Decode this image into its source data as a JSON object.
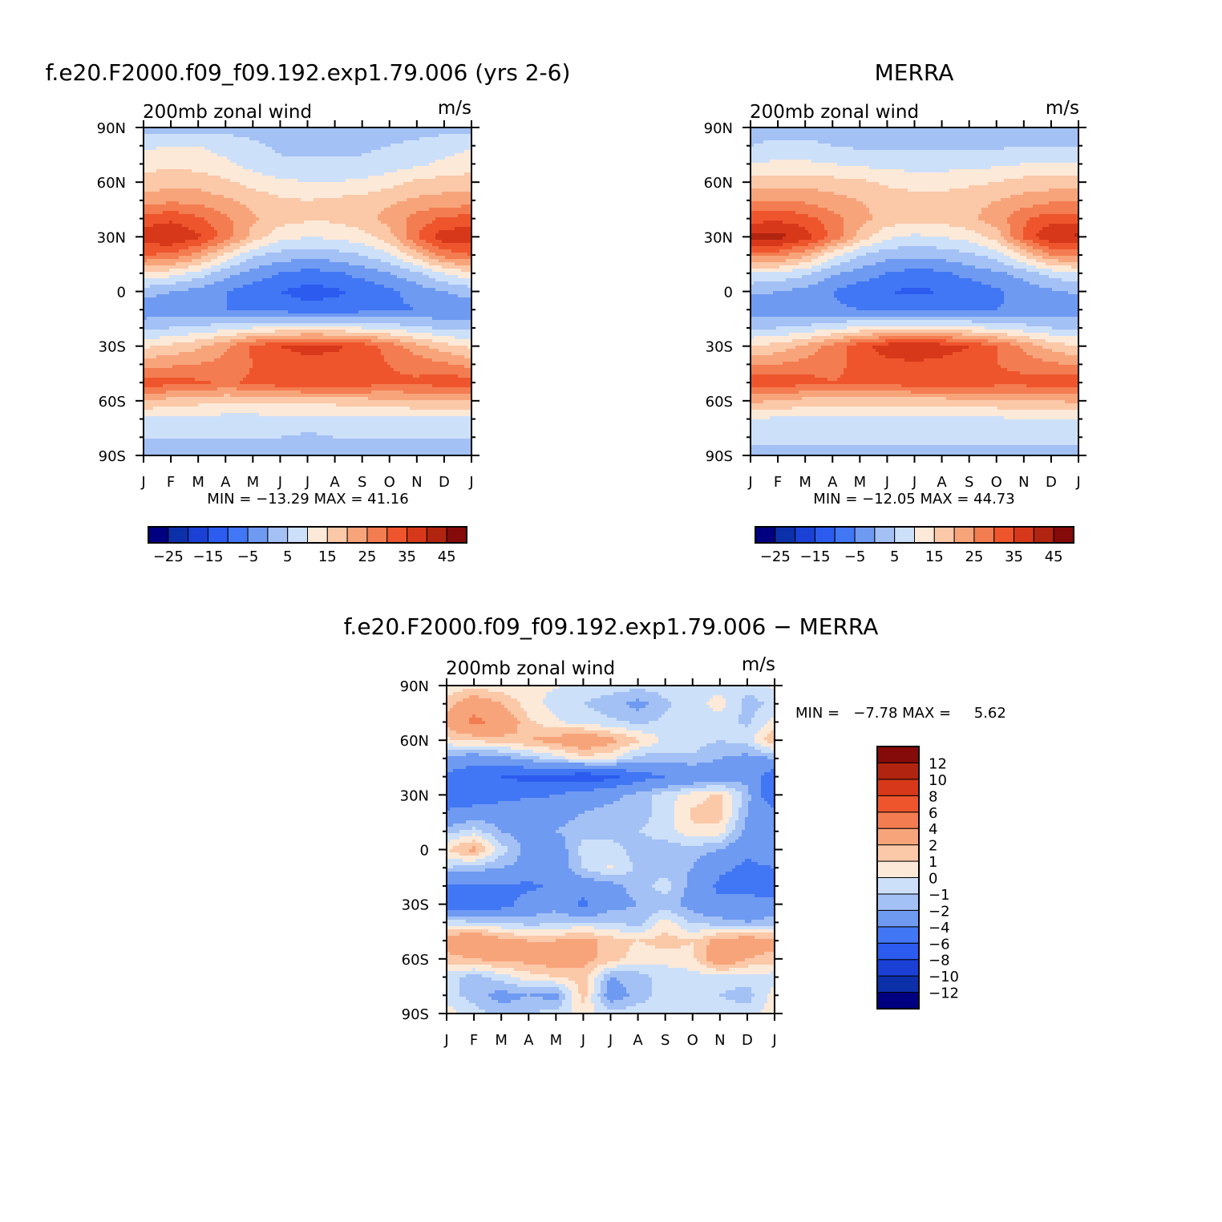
{
  "chart_data": [
    {
      "type": "heatmap",
      "title": "f.e20.F2000.f09_f09.192.exp1.79.006 (yrs 2-6)",
      "left_label": "200mb zonal wind",
      "right_label": "m/s",
      "x_ticks": [
        "J",
        "F",
        "M",
        "A",
        "M",
        "J",
        "J",
        "A",
        "S",
        "O",
        "N",
        "D",
        "J"
      ],
      "y_ticks": [
        "90N",
        "60N",
        "30N",
        "0",
        "30S",
        "60S",
        "90S"
      ],
      "ylim": [
        -90,
        90
      ],
      "min_max_text": "MIN = −13.29 MAX =   41.16",
      "min": -13.29,
      "max": 41.16,
      "colorbar": {
        "orientation": "horizontal",
        "levels": [
          -30,
          -25,
          -20,
          -15,
          -10,
          -5,
          0,
          5,
          10,
          15,
          20,
          25,
          30,
          35,
          40,
          45,
          50
        ],
        "labels": [
          "−25",
          "−15",
          "−5",
          "5",
          "15",
          "25",
          "35",
          "45"
        ]
      },
      "field": {
        "months": [
          1,
          2,
          3,
          4,
          5,
          6,
          7,
          8,
          9,
          10,
          11,
          12,
          13
        ],
        "latitudes": [
          90,
          80,
          70,
          60,
          50,
          40,
          30,
          20,
          10,
          0,
          -10,
          -20,
          -30,
          -40,
          -50,
          -60,
          -70,
          -80,
          -90
        ],
        "values": [
          [
            3,
            3,
            3,
            3,
            3,
            3,
            3,
            3,
            3,
            3,
            3,
            3,
            3
          ],
          [
            9,
            10,
            10,
            8,
            6,
            4,
            4,
            4,
            4,
            5,
            6,
            8,
            9
          ],
          [
            13,
            14,
            13,
            11,
            8,
            6,
            6,
            6,
            6,
            7,
            9,
            11,
            13
          ],
          [
            17,
            18,
            18,
            16,
            13,
            11,
            10,
            10,
            11,
            13,
            16,
            17,
            17
          ],
          [
            22,
            24,
            23,
            21,
            18,
            16,
            15,
            16,
            17,
            19,
            21,
            22,
            22
          ],
          [
            32,
            34,
            31,
            26,
            21,
            17,
            16,
            16,
            18,
            22,
            27,
            31,
            32
          ],
          [
            38,
            40,
            36,
            28,
            18,
            12,
            10,
            11,
            13,
            18,
            30,
            38,
            38
          ],
          [
            30,
            29,
            23,
            14,
            6,
            3,
            2,
            3,
            5,
            9,
            18,
            27,
            30
          ],
          [
            14,
            12,
            8,
            2,
            -2,
            -5,
            -7,
            -6,
            -3,
            0,
            4,
            10,
            14
          ],
          [
            2,
            0,
            -2,
            -5,
            -8,
            -10,
            -12,
            -11,
            -9,
            -6,
            -3,
            0,
            2
          ],
          [
            -3,
            -3,
            -4,
            -5,
            -6,
            -7,
            -8,
            -8,
            -7,
            -6,
            -5,
            -4,
            -3
          ],
          [
            3,
            5,
            6,
            8,
            10,
            11,
            11,
            11,
            10,
            8,
            6,
            4,
            3
          ],
          [
            14,
            16,
            19,
            24,
            31,
            35,
            37,
            36,
            33,
            28,
            22,
            17,
            14
          ],
          [
            23,
            24,
            25,
            27,
            30,
            32,
            33,
            33,
            32,
            30,
            28,
            26,
            23
          ],
          [
            33,
            32,
            31,
            29,
            31,
            33,
            34,
            35,
            33,
            31,
            31,
            33,
            33
          ],
          [
            20,
            18,
            17,
            16,
            16,
            17,
            17,
            17,
            18,
            19,
            20,
            20,
            20
          ],
          [
            9,
            8,
            8,
            8,
            8,
            8,
            8,
            8,
            8,
            8,
            8,
            9,
            9
          ],
          [
            5,
            5,
            5,
            5,
            5,
            5,
            4,
            5,
            5,
            5,
            5,
            5,
            5
          ],
          [
            4,
            4,
            4,
            4,
            4,
            4,
            4,
            4,
            4,
            4,
            4,
            4,
            4
          ]
        ]
      }
    },
    {
      "type": "heatmap",
      "title": "MERRA",
      "left_label": "200mb zonal wind",
      "right_label": "m/s",
      "x_ticks": [
        "J",
        "F",
        "M",
        "A",
        "M",
        "J",
        "J",
        "A",
        "S",
        "O",
        "N",
        "D",
        "J"
      ],
      "y_ticks": [
        "90N",
        "60N",
        "30N",
        "0",
        "30S",
        "60S",
        "90S"
      ],
      "ylim": [
        -90,
        90
      ],
      "min_max_text": "MIN = −12.05 MAX =   44.73",
      "min": -12.05,
      "max": 44.73,
      "colorbar": {
        "orientation": "horizontal",
        "levels": [
          -30,
          -25,
          -20,
          -15,
          -10,
          -5,
          0,
          5,
          10,
          15,
          20,
          25,
          30,
          35,
          40,
          45,
          50
        ],
        "labels": [
          "−25",
          "−15",
          "−5",
          "5",
          "15",
          "25",
          "35",
          "45"
        ]
      },
      "field": {
        "months": [
          1,
          2,
          3,
          4,
          5,
          6,
          7,
          8,
          9,
          10,
          11,
          12,
          13
        ],
        "latitudes": [
          90,
          80,
          70,
          60,
          50,
          40,
          30,
          20,
          10,
          0,
          -10,
          -20,
          -30,
          -40,
          -50,
          -60,
          -70,
          -80,
          -90
        ],
        "values": [
          [
            3,
            3,
            3,
            3,
            3,
            3,
            3,
            3,
            3,
            3,
            3,
            3,
            3
          ],
          [
            5,
            6,
            6,
            5,
            4,
            4,
            4,
            4,
            4,
            4,
            5,
            5,
            5
          ],
          [
            10,
            11,
            11,
            10,
            9,
            8,
            8,
            8,
            8,
            9,
            10,
            10,
            10
          ],
          [
            17,
            18,
            18,
            17,
            16,
            14,
            13,
            13,
            14,
            15,
            17,
            17,
            17
          ],
          [
            24,
            25,
            24,
            22,
            20,
            18,
            17,
            17,
            18,
            20,
            22,
            24,
            24
          ],
          [
            33,
            34,
            32,
            27,
            22,
            18,
            17,
            17,
            19,
            23,
            29,
            33,
            33
          ],
          [
            41,
            42,
            38,
            29,
            18,
            11,
            9,
            10,
            12,
            17,
            31,
            40,
            41
          ],
          [
            27,
            27,
            21,
            12,
            5,
            2,
            1,
            2,
            4,
            7,
            16,
            25,
            27
          ],
          [
            10,
            9,
            6,
            1,
            -2,
            -5,
            -7,
            -6,
            -3,
            -1,
            2,
            7,
            10
          ],
          [
            1,
            0,
            -2,
            -5,
            -8,
            -10,
            -11,
            -10,
            -9,
            -6,
            -3,
            -1,
            1
          ],
          [
            -3,
            -3,
            -3,
            -4,
            -5,
            -6,
            -6,
            -6,
            -6,
            -5,
            -4,
            -3,
            -3
          ],
          [
            4,
            5,
            6,
            9,
            11,
            12,
            12,
            12,
            11,
            9,
            7,
            5,
            4
          ],
          [
            15,
            17,
            21,
            27,
            33,
            38,
            40,
            38,
            35,
            30,
            24,
            18,
            15
          ],
          [
            24,
            25,
            27,
            29,
            31,
            33,
            34,
            33,
            32,
            30,
            28,
            26,
            24
          ],
          [
            34,
            33,
            32,
            30,
            31,
            32,
            33,
            33,
            34,
            32,
            32,
            33,
            34
          ],
          [
            21,
            20,
            18,
            17,
            17,
            17,
            18,
            18,
            19,
            19,
            20,
            20,
            21
          ],
          [
            10,
            9,
            9,
            9,
            9,
            9,
            9,
            9,
            9,
            9,
            10,
            10,
            10
          ],
          [
            6,
            6,
            6,
            6,
            6,
            6,
            6,
            6,
            6,
            6,
            6,
            6,
            6
          ],
          [
            4,
            4,
            4,
            4,
            4,
            4,
            4,
            4,
            4,
            4,
            4,
            4,
            4
          ]
        ]
      }
    },
    {
      "type": "heatmap",
      "title": "f.e20.F2000.f09_f09.192.exp1.79.006 − MERRA",
      "left_label": "200mb zonal wind",
      "right_label": "m/s",
      "x_ticks": [
        "J",
        "F",
        "M",
        "A",
        "M",
        "J",
        "J",
        "A",
        "S",
        "O",
        "N",
        "D",
        "J"
      ],
      "y_ticks": [
        "90N",
        "60N",
        "30N",
        "0",
        "30S",
        "60S",
        "90S"
      ],
      "ylim": [
        -90,
        90
      ],
      "min_max_text": "MIN =   −7.78 MAX =     5.62",
      "min": -7.78,
      "max": 5.62,
      "colorbar": {
        "orientation": "vertical",
        "levels": [
          -14,
          -12,
          -10,
          -8,
          -6,
          -4,
          -2,
          -1,
          0,
          1,
          2,
          4,
          6,
          8,
          10,
          12,
          14
        ],
        "labels": [
          "−12",
          "−10",
          "−8",
          "−6",
          "−4",
          "−2",
          "−1",
          "0",
          "1",
          "2",
          "4",
          "6",
          "8",
          "10",
          "12"
        ]
      },
      "field": {
        "months": [
          1,
          2,
          3,
          4,
          5,
          6,
          7,
          8,
          9,
          10,
          11,
          12,
          13
        ],
        "latitudes": [
          90,
          80,
          70,
          60,
          50,
          40,
          30,
          20,
          10,
          0,
          -10,
          -20,
          -30,
          -40,
          -50,
          -60,
          -70,
          -80,
          -90
        ],
        "values": [
          [
            0.3,
            0.5,
            0.4,
            0.2,
            0.1,
            -0.4,
            -0.5,
            -0.6,
            -0.5,
            -0.4,
            -0.5,
            -0.6,
            0.2
          ],
          [
            1.5,
            3.2,
            2.0,
            0.5,
            -0.5,
            -1.0,
            -1.5,
            -2.5,
            -1.2,
            -0.5,
            0.5,
            -1.5,
            -0.8
          ],
          [
            2.5,
            4.5,
            3.5,
            1.2,
            0.2,
            -0.5,
            -0.8,
            -1.2,
            -0.8,
            -0.8,
            -0.5,
            -1.2,
            0.5
          ],
          [
            0.8,
            1.2,
            1.5,
            2.0,
            2.5,
            3.5,
            2.5,
            1.2,
            -0.2,
            -0.5,
            -1.0,
            -0.5,
            2.0
          ],
          [
            -2.5,
            -3.0,
            -2.5,
            -1.5,
            -0.5,
            0.5,
            0.3,
            -1.5,
            -1.5,
            -1.2,
            -2.0,
            -2.5,
            -2.0
          ],
          [
            -4.5,
            -5.5,
            -6.0,
            -6.5,
            -6.5,
            -7.5,
            -6.5,
            -5.0,
            -4.0,
            -3.5,
            -3.0,
            -2.5,
            -5.5
          ],
          [
            -6.0,
            -5.5,
            -5.0,
            -4.5,
            -4.0,
            -3.0,
            -2.5,
            -1.5,
            -0.5,
            0.5,
            1.2,
            -1.5,
            -6.5
          ],
          [
            -3.5,
            -3.0,
            -2.5,
            -2.0,
            -2.5,
            -2.0,
            -1.5,
            -1.5,
            -0.5,
            1.2,
            1.5,
            -2.0,
            -3.0
          ],
          [
            -1.5,
            -0.5,
            -2.0,
            -2.5,
            -2.0,
            -1.5,
            -1.5,
            -1.0,
            -0.5,
            0.8,
            0.5,
            -2.5,
            -2.5
          ],
          [
            1.0,
            2.5,
            -0.5,
            -2.5,
            -3.0,
            -0.5,
            -0.5,
            -1.5,
            -1.5,
            -1.5,
            -2.0,
            -3.5,
            -2.0
          ],
          [
            -1.0,
            -1.5,
            -2.0,
            -2.5,
            -3.0,
            -1.0,
            0.2,
            -1.2,
            -1.5,
            -2.0,
            -3.5,
            -4.5,
            -4.0
          ],
          [
            -4.5,
            -4.0,
            -4.0,
            -4.5,
            -3.5,
            -3.0,
            -2.5,
            -1.5,
            -0.5,
            -2.5,
            -4.5,
            -5.0,
            -5.5
          ],
          [
            -6.0,
            -5.5,
            -5.0,
            -3.0,
            -2.5,
            -4.5,
            -2.5,
            -2.0,
            -1.5,
            -2.5,
            -3.5,
            -3.0,
            -3.0
          ],
          [
            -0.5,
            -0.8,
            -1.0,
            -1.5,
            -1.2,
            -0.8,
            -1.0,
            -1.5,
            0.5,
            -1.2,
            -1.5,
            -2.0,
            -1.5
          ],
          [
            3.0,
            4.0,
            2.5,
            2.0,
            2.0,
            2.5,
            1.5,
            1.0,
            1.5,
            1.0,
            2.5,
            3.0,
            2.5
          ],
          [
            1.5,
            2.0,
            2.5,
            2.5,
            3.0,
            2.5,
            1.5,
            0.5,
            0.3,
            0.8,
            3.5,
            2.0,
            1.5
          ],
          [
            -0.5,
            -1.5,
            -0.5,
            0.5,
            1.0,
            1.5,
            -2.0,
            -1.5,
            -0.5,
            -0.5,
            -0.5,
            -0.5,
            -0.5
          ],
          [
            -0.5,
            -1.5,
            -2.5,
            -2.0,
            -2.5,
            1.5,
            -3.0,
            -1.5,
            -0.5,
            -0.8,
            -1.0,
            -1.5,
            0.5
          ],
          [
            0.5,
            -0.5,
            -1.5,
            -1.0,
            -0.5,
            0.3,
            -0.5,
            -0.5,
            -0.5,
            -0.5,
            -0.5,
            -0.5,
            0.5
          ]
        ]
      }
    }
  ],
  "palette": [
    "#000080",
    "#0c2faa",
    "#1a40d6",
    "#2b5bef",
    "#4177f4",
    "#6f9af2",
    "#a3c1f5",
    "#cde0fa",
    "#fde9d8",
    "#fbc8a8",
    "#f8a47a",
    "#f47c51",
    "#ef552c",
    "#d8381a",
    "#b1240f",
    "#850a0a"
  ]
}
